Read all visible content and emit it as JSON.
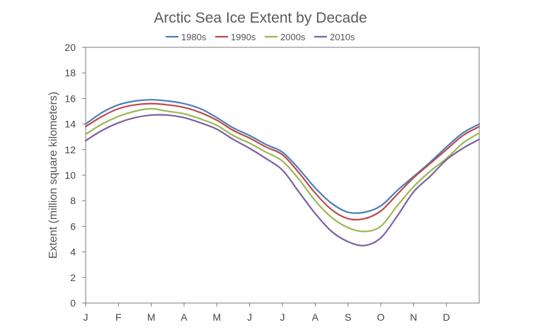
{
  "chart_data": {
    "type": "line",
    "title": "Arctic Sea Ice Extent by Decade",
    "xlabel": "",
    "ylabel": "Extent (million square kilometers)",
    "ylim": [
      0,
      20
    ],
    "yticks": [
      0,
      2,
      4,
      6,
      8,
      10,
      12,
      14,
      16,
      18,
      20
    ],
    "xlim": [
      0,
      12
    ],
    "month_ticks": [
      "J",
      "F",
      "M",
      "A",
      "M",
      "J",
      "J",
      "A",
      "S",
      "O",
      "N",
      "D"
    ],
    "x": [
      0,
      0.5,
      1,
      1.5,
      2,
      2.5,
      3,
      3.5,
      4,
      4.5,
      5,
      5.5,
      6,
      6.5,
      7,
      7.5,
      8,
      8.5,
      9,
      9.5,
      10,
      10.5,
      11,
      11.5,
      12
    ],
    "grid": false,
    "legend": "top",
    "series": [
      {
        "name": "1980s",
        "color": "#4a7ebb",
        "values": [
          14.0,
          14.9,
          15.5,
          15.8,
          15.9,
          15.8,
          15.6,
          15.2,
          14.5,
          13.7,
          13.1,
          12.4,
          11.8,
          10.5,
          9.0,
          7.8,
          7.1,
          7.1,
          7.6,
          8.8,
          9.9,
          11.0,
          12.2,
          13.3,
          14.0
        ]
      },
      {
        "name": "1990s",
        "color": "#be4b48",
        "values": [
          13.8,
          14.6,
          15.2,
          15.5,
          15.6,
          15.5,
          15.3,
          14.9,
          14.3,
          13.5,
          12.9,
          12.2,
          11.6,
          10.2,
          8.6,
          7.3,
          6.6,
          6.6,
          7.2,
          8.5,
          9.8,
          10.9,
          12.0,
          13.1,
          13.8
        ]
      },
      {
        "name": "2000s",
        "color": "#98b954",
        "values": [
          13.2,
          14.0,
          14.6,
          15.0,
          15.2,
          15.0,
          14.8,
          14.4,
          13.9,
          13.1,
          12.5,
          11.8,
          11.1,
          9.7,
          8.0,
          6.7,
          5.9,
          5.6,
          6.0,
          7.6,
          9.1,
          10.3,
          11.3,
          12.5,
          13.3
        ]
      },
      {
        "name": "2010s",
        "color": "#7d60a0",
        "values": [
          12.7,
          13.5,
          14.1,
          14.5,
          14.7,
          14.7,
          14.5,
          14.1,
          13.6,
          12.8,
          12.1,
          11.3,
          10.4,
          8.7,
          7.0,
          5.6,
          4.8,
          4.5,
          5.1,
          6.8,
          8.7,
          9.9,
          11.2,
          12.1,
          12.8
        ]
      }
    ]
  }
}
